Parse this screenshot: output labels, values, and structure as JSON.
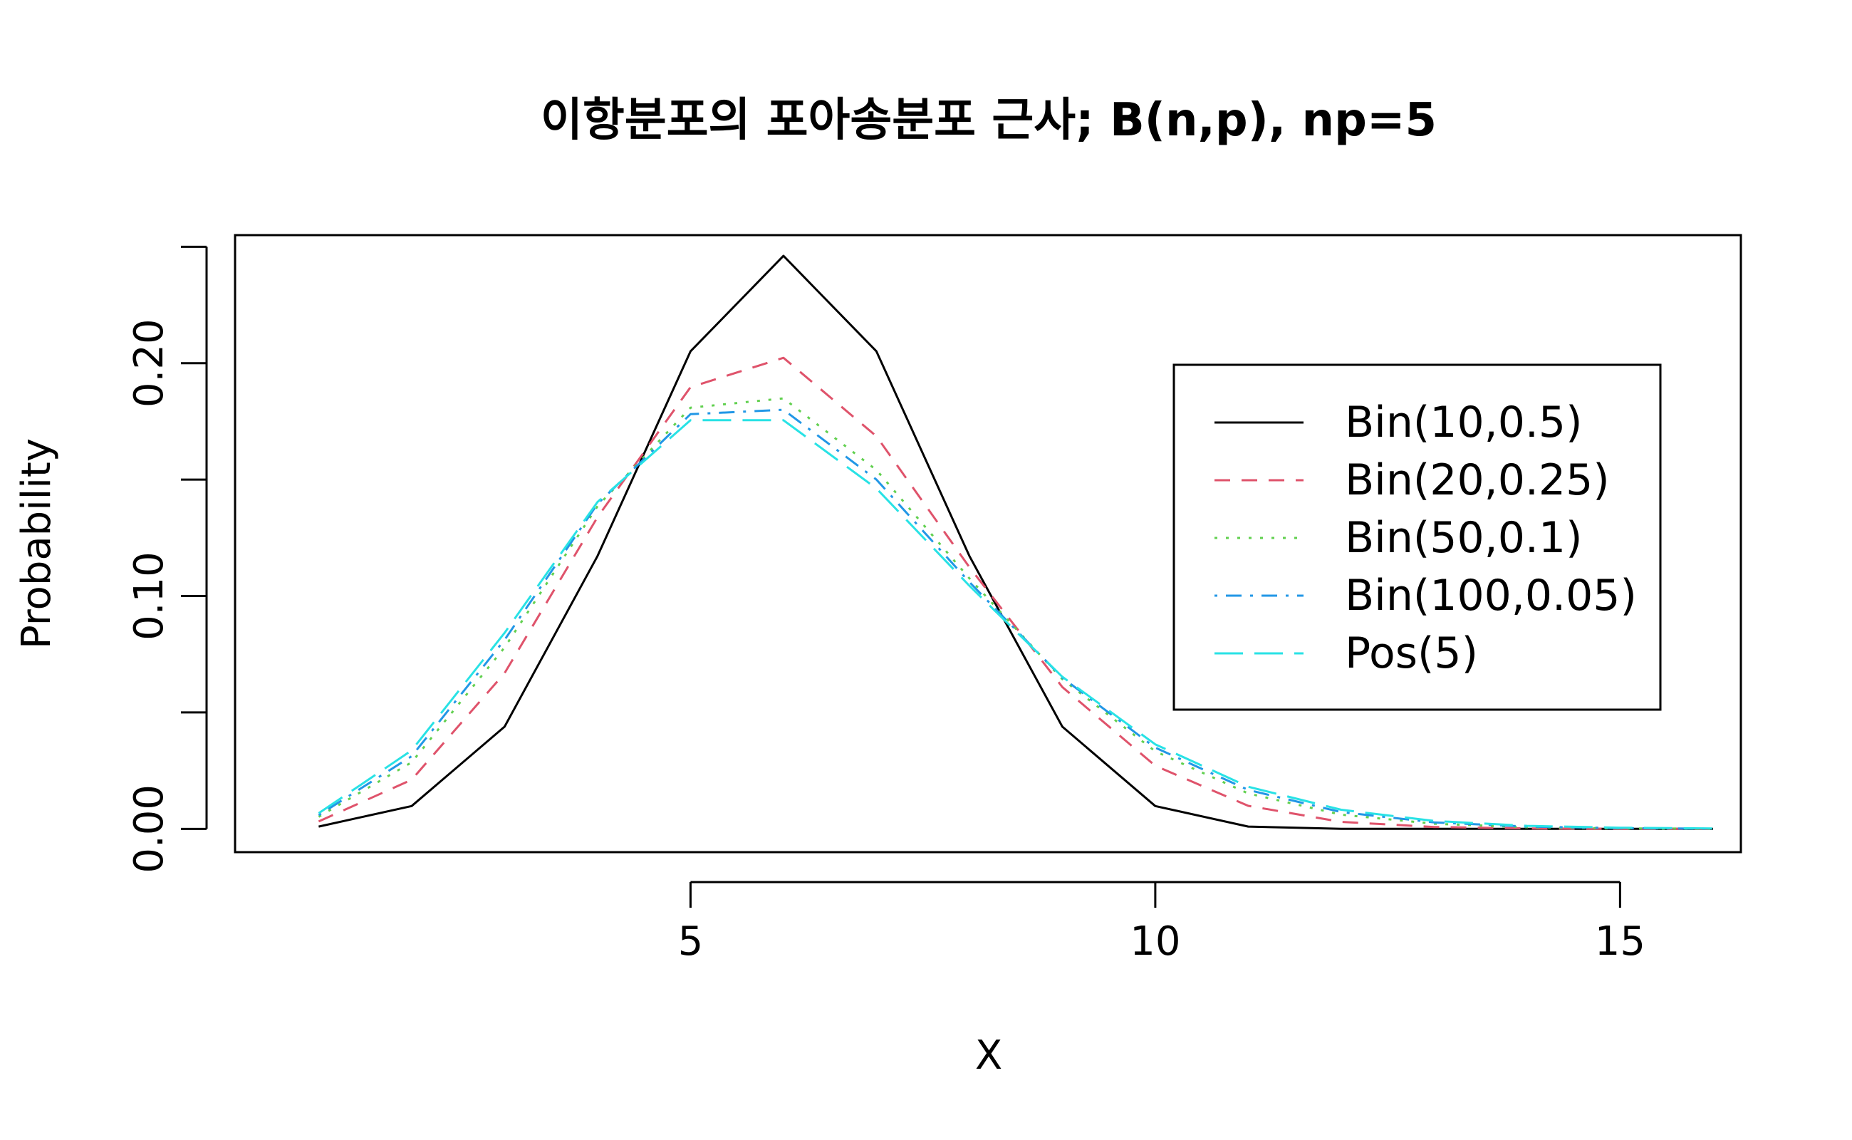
{
  "chart_data": {
    "type": "line",
    "title": "이항분포의 포아송분포 근사; B(n,p), np=5",
    "xlabel": "X",
    "ylabel": "Probability",
    "xlim": [
      0.1,
      16.3
    ],
    "ylim": [
      -0.01,
      0.255
    ],
    "x_ticks": [
      5,
      10,
      15
    ],
    "y_ticks": [
      0.0,
      0.05,
      0.1,
      0.15,
      0.2,
      0.25
    ],
    "y_tick_labels": [
      "0.00",
      "",
      "0.10",
      "",
      "0.20",
      ""
    ],
    "legend_position": "top-right",
    "grid": false,
    "x": [
      1,
      2,
      3,
      4,
      5,
      6,
      7,
      8,
      9,
      10,
      11,
      12,
      13,
      14,
      15,
      16
    ],
    "series": [
      {
        "name": "Bin(10,0.5)",
        "color": "#000000",
        "dash": "solid",
        "values": [
          0.001,
          0.0098,
          0.0439,
          0.1172,
          0.2051,
          0.2461,
          0.2051,
          0.1172,
          0.0439,
          0.0098,
          0.001,
          0.0,
          0.0,
          0.0,
          0.0,
          0.0
        ]
      },
      {
        "name": "Bin(20,0.25)",
        "color": "#DF536B",
        "dash": "dashed",
        "values": [
          0.0032,
          0.0211,
          0.0669,
          0.1339,
          0.1897,
          0.2023,
          0.1686,
          0.1124,
          0.0609,
          0.0271,
          0.0099,
          0.003,
          0.0008,
          0.0002,
          0.0,
          0.0
        ]
      },
      {
        "name": "Bin(50,0.1)",
        "color": "#61D04F",
        "dash": "dotted",
        "values": [
          0.0052,
          0.0286,
          0.0779,
          0.1386,
          0.1809,
          0.1849,
          0.1541,
          0.1076,
          0.0643,
          0.0333,
          0.0152,
          0.0061,
          0.0022,
          0.0007,
          0.0002,
          0.0001
        ]
      },
      {
        "name": "Bin(100,0.05)",
        "color": "#2297E6",
        "dash": "dotdash",
        "values": [
          0.0059,
          0.0312,
          0.0812,
          0.1396,
          0.1781,
          0.18,
          0.15,
          0.106,
          0.0649,
          0.0349,
          0.0167,
          0.0072,
          0.0028,
          0.001,
          0.0003,
          0.0001
        ]
      },
      {
        "name": "Pos(5)",
        "color": "#28E2E5",
        "dash": "longdash",
        "values": [
          0.0067,
          0.0337,
          0.0842,
          0.1404,
          0.1755,
          0.1755,
          0.1462,
          0.1044,
          0.0653,
          0.0363,
          0.0181,
          0.0082,
          0.0034,
          0.0013,
          0.0005,
          0.0002
        ]
      }
    ]
  }
}
